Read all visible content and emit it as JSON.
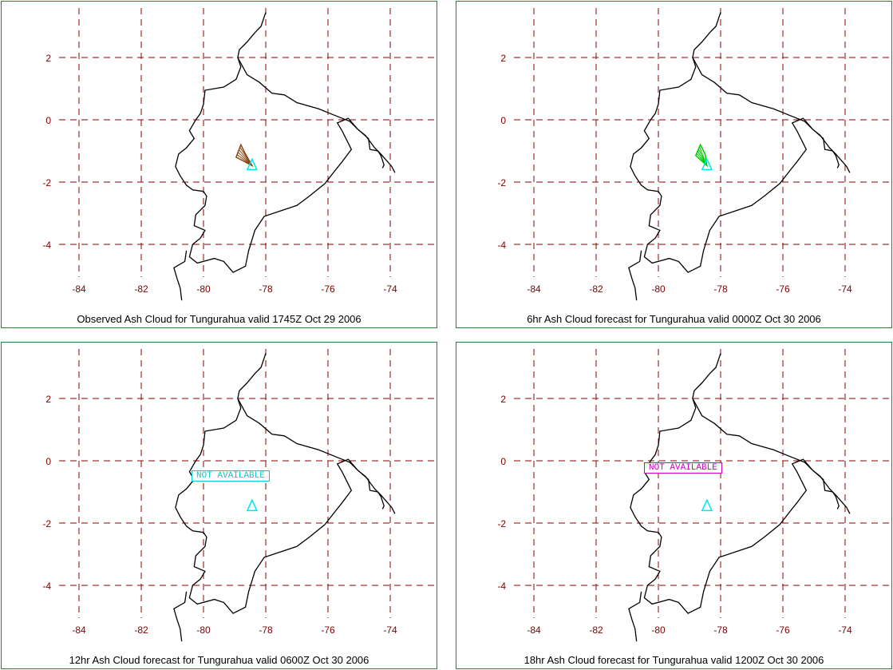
{
  "panels": [
    {
      "caption": "Observed Ash Cloud for Tungurahua valid 1745Z Oct 29 2006",
      "ash_color": "#8b4513",
      "status": ""
    },
    {
      "caption": "6hr Ash Cloud forecast for Tungurahua valid 0000Z Oct 30 2006",
      "ash_color": "#00cc00",
      "status": ""
    },
    {
      "caption": "12hr Ash Cloud forecast for Tungurahua valid 0600Z Oct 30 2006",
      "ash_color": "#00cccc",
      "status": "NOT AVAILABLE"
    },
    {
      "caption": "18hr Ash Cloud forecast for Tungurahua valid 1200Z Oct 30 2006",
      "ash_color": "#cc00cc",
      "status": "NOT AVAILABLE"
    }
  ],
  "map": {
    "lat_labels": [
      "2",
      "0",
      "-2",
      "-4"
    ],
    "lon_labels": [
      "-84",
      "-82",
      "-80",
      "-78",
      "-76",
      "-74"
    ],
    "grid_color": "#8b0000",
    "coast_color": "#000000",
    "volcano_color": "#00e5ee",
    "volcano": {
      "lat": -1.47,
      "lon": -78.44
    }
  }
}
